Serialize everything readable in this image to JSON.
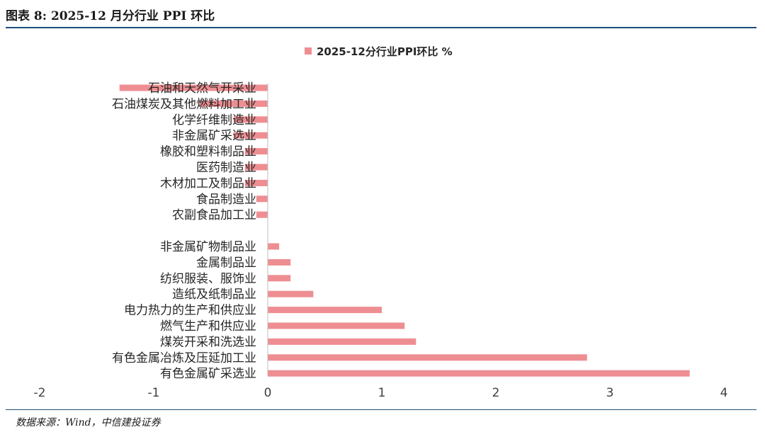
{
  "header": {
    "title": "图表 8: 2025-12 月分行业 PPI 环比"
  },
  "footer": {
    "source": "数据来源：Wind，中信建投证券"
  },
  "colors": {
    "bar": "#ee8e92",
    "axis": "#bfbfbf",
    "rule": "#1f4e79"
  },
  "chart_data": {
    "type": "bar",
    "orientation": "horizontal",
    "title": "",
    "legend": {
      "position": "top-center",
      "entries": [
        "2025-12分行业PPI环比 %"
      ]
    },
    "series": [
      {
        "name": "2025-12分行业PPI环比 %",
        "categories": [
          "石油和天然气开采业",
          "石油煤炭及其他燃料加工业",
          "化学纤维制造业",
          "非金属矿采选业",
          "橡胶和塑料制品业",
          "医药制造业",
          "木材加工及制品业",
          "食品制造业",
          "农副食品加工业",
          "",
          "非金属矿物制品业",
          "金属制品业",
          "纺织服装、服饰业",
          "造纸及纸制品业",
          "电力热力的生产和供应业",
          "燃气生产和供应业",
          "煤炭开采和洗选业",
          "有色金属冶炼及压延加工业",
          "有色金属矿采选业"
        ],
        "values": [
          -1.3,
          -0.6,
          -0.3,
          -0.3,
          -0.2,
          -0.2,
          -0.2,
          -0.1,
          -0.1,
          null,
          0.1,
          0.2,
          0.2,
          0.4,
          1.0,
          1.2,
          1.3,
          2.8,
          3.7
        ]
      }
    ],
    "xlim": [
      -2,
      4
    ],
    "xticks": [
      "-2",
      "-1",
      "0",
      "1",
      "2",
      "3",
      "4"
    ],
    "grid": false
  }
}
